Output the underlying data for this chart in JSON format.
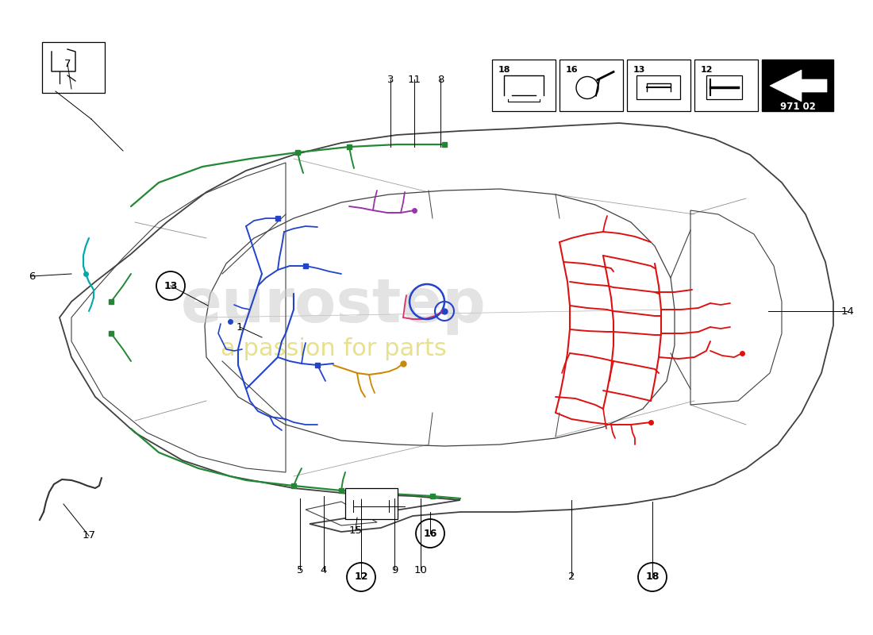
{
  "background_color": "#ffffff",
  "car_color": "#404040",
  "part_number": "971 02",
  "colors": {
    "red": "#dd1111",
    "blue": "#2244cc",
    "green": "#228833",
    "cyan": "#00aaaa",
    "orange": "#cc8800",
    "purple": "#9933aa",
    "pink": "#dd3366",
    "yellow_green": "#88cc00",
    "dark_green": "#006600"
  },
  "watermark1": "eurostep",
  "watermark2": "a passion for parts",
  "circled_labels": [
    12,
    13,
    16,
    18
  ],
  "plain_labels": [
    1,
    2,
    3,
    4,
    5,
    6,
    7,
    8,
    9,
    10,
    11,
    14,
    15,
    17
  ],
  "icon_labels": [
    "18",
    "16",
    "13",
    "12"
  ],
  "figsize": [
    11.0,
    8.0
  ],
  "dpi": 100
}
